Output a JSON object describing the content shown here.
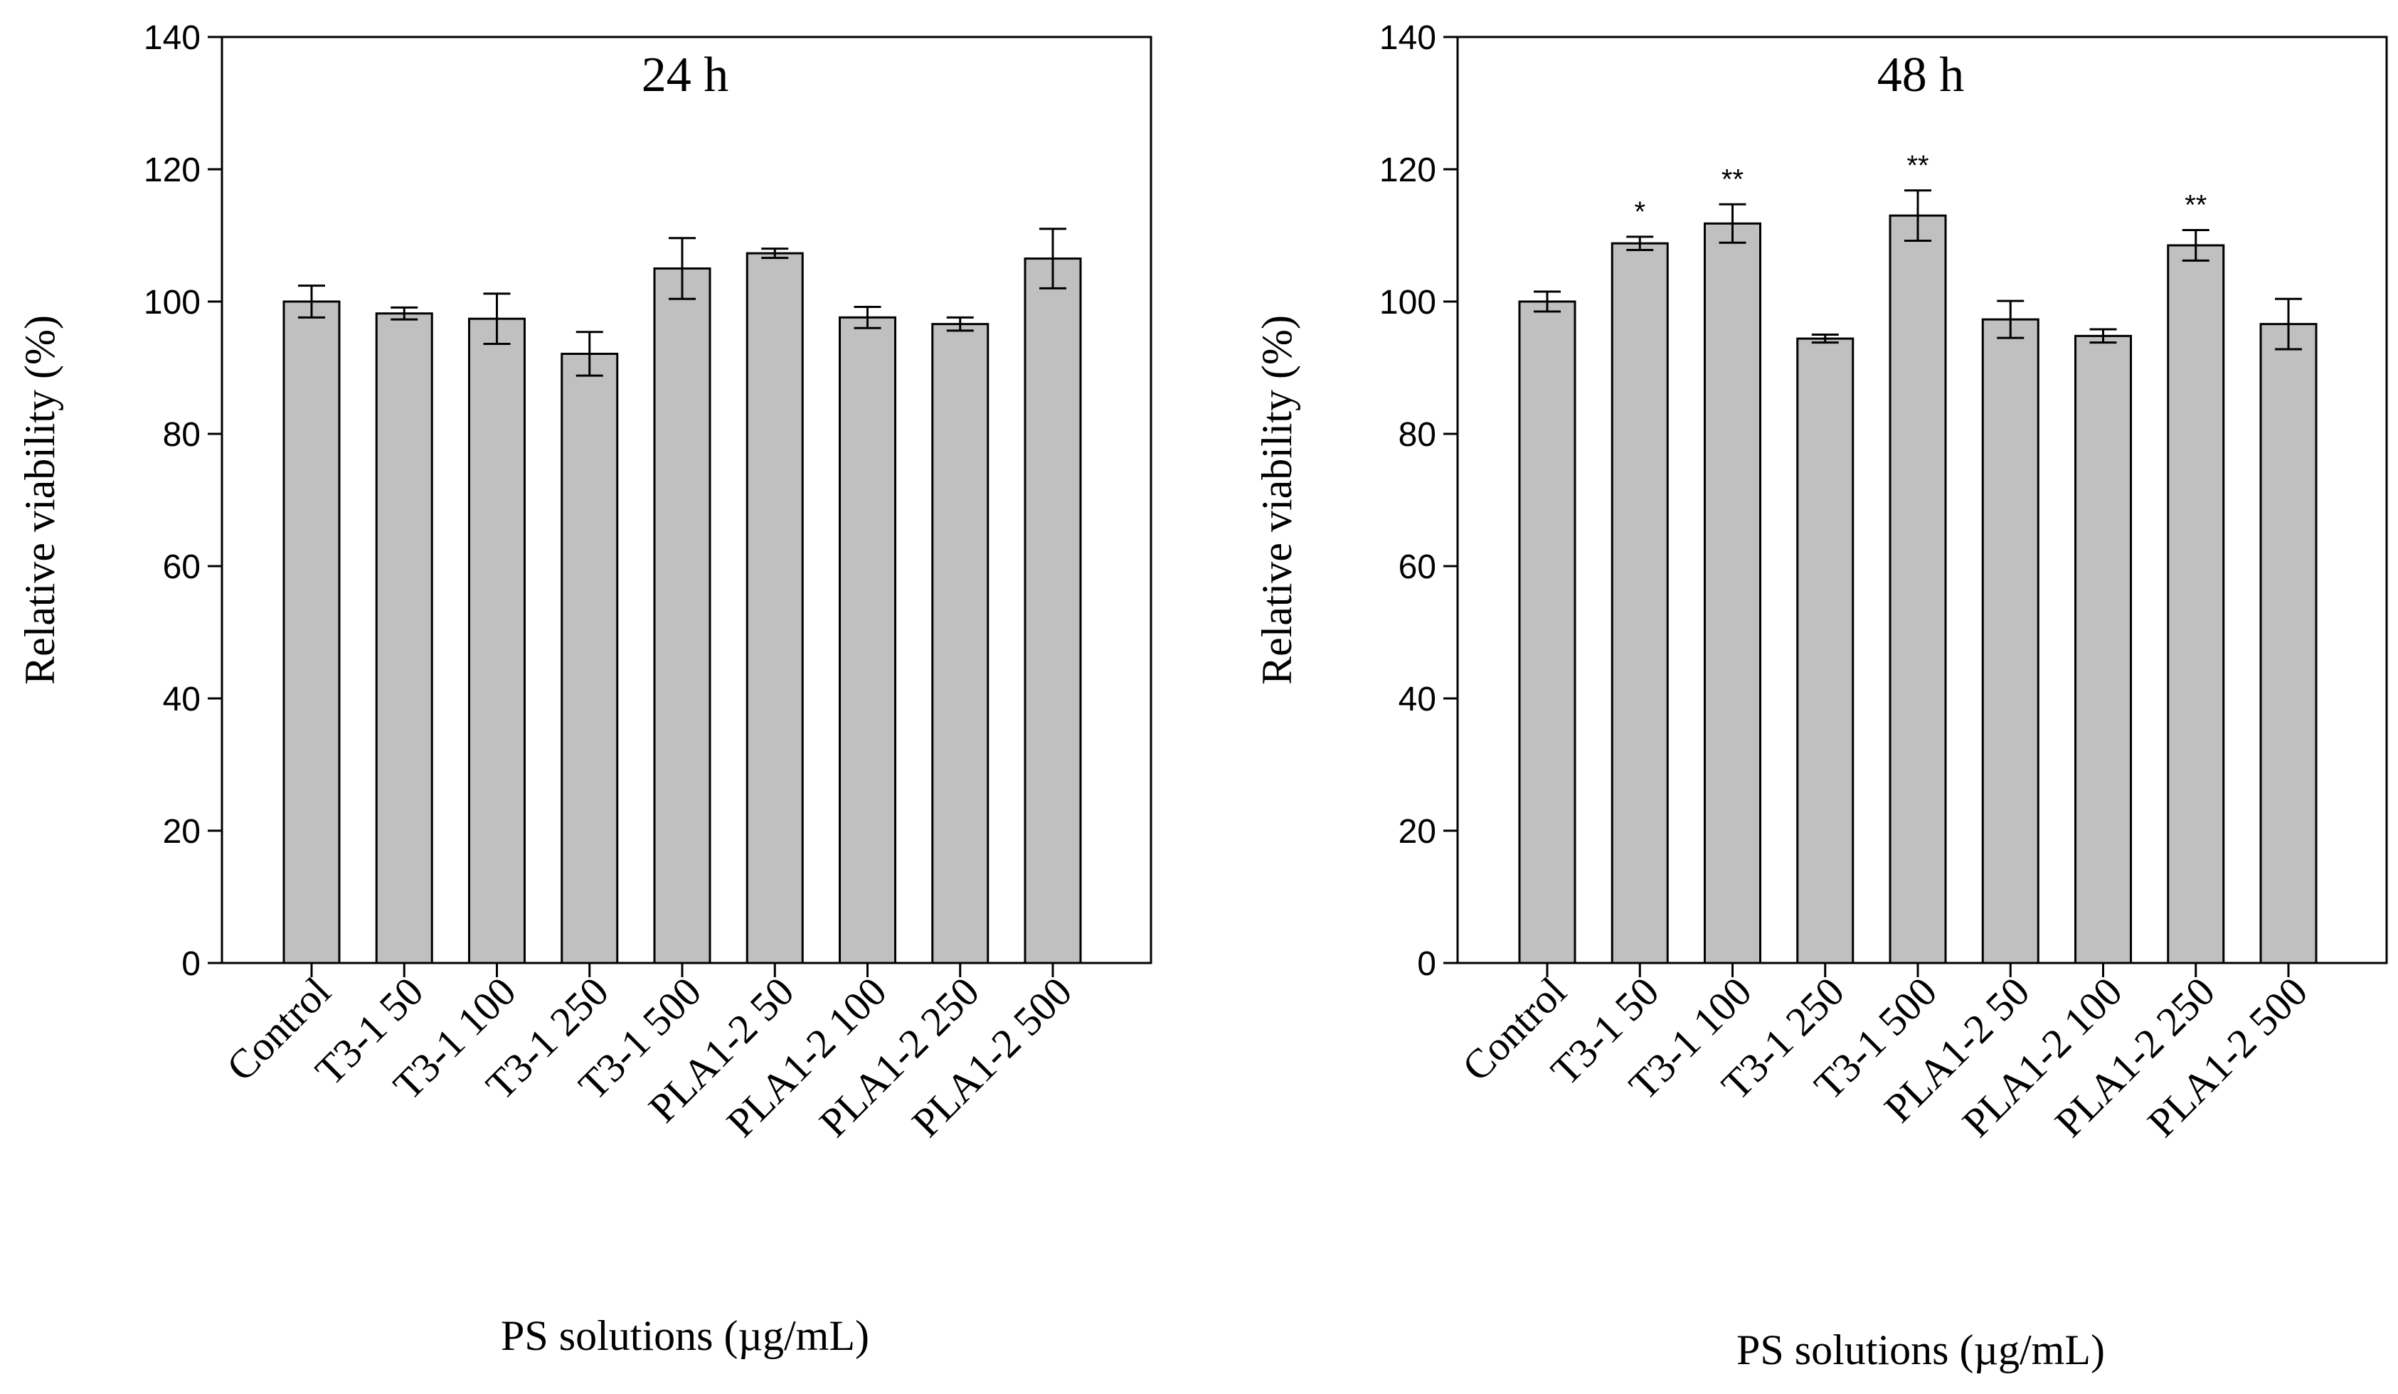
{
  "colors": {
    "bar_fill": "#c0c0c0",
    "stroke": "#000000",
    "background": "#ffffff"
  },
  "chart_data": [
    {
      "type": "bar",
      "title": "24 h",
      "xlabel": "PS solutions (µg/mL)",
      "ylabel": "Relative viability (%)",
      "ylim": [
        0,
        140
      ],
      "yticks": [
        0,
        20,
        40,
        60,
        80,
        100,
        120,
        140
      ],
      "grid": false,
      "categories": [
        "Control",
        "T3-1 50",
        "T3-1 100",
        "T3-1 250",
        "T3-1 500",
        "PLA1-2 50",
        "PLA1-2 100",
        "PLA1-2 250",
        "PLA1-2 500"
      ],
      "values": [
        100.0,
        98.2,
        97.4,
        92.1,
        105.0,
        107.3,
        97.6,
        96.6,
        106.5
      ],
      "errors": [
        2.4,
        0.9,
        3.8,
        3.3,
        4.6,
        0.7,
        1.6,
        1.0,
        4.5
      ],
      "significance": [
        "",
        "",
        "",
        "",
        "",
        "",
        "",
        "",
        ""
      ]
    },
    {
      "type": "bar",
      "title": "48 h",
      "xlabel": "PS solutions (µg/mL)",
      "ylabel": "Relative viability (%)",
      "ylim": [
        0,
        140
      ],
      "yticks": [
        0,
        20,
        40,
        60,
        80,
        100,
        120,
        140
      ],
      "grid": false,
      "categories": [
        "Control",
        "T3-1 50",
        "T3-1 100",
        "T3-1 250",
        "T3-1 500",
        "PLA1-2 50",
        "PLA1-2 100",
        "PLA1-2 250",
        "PLA1-2 500"
      ],
      "values": [
        100.0,
        108.8,
        111.8,
        94.4,
        113.0,
        97.3,
        94.8,
        108.5,
        96.6
      ],
      "errors": [
        1.5,
        1.0,
        2.9,
        0.6,
        3.8,
        2.8,
        1.0,
        2.3,
        3.8
      ],
      "significance": [
        "",
        "*",
        "**",
        "",
        "**",
        "",
        "",
        "**",
        ""
      ]
    }
  ]
}
